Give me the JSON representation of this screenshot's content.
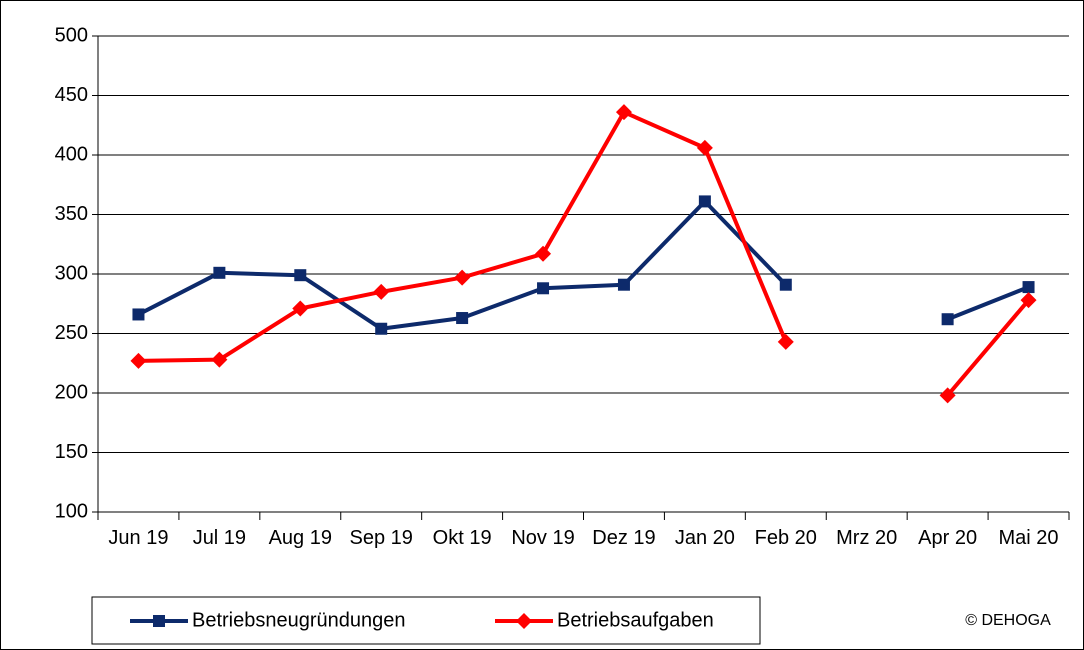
{
  "chart_data": {
    "type": "line",
    "categories": [
      "Jun 19",
      "Jul 19",
      "Aug 19",
      "Sep 19",
      "Okt 19",
      "Nov 19",
      "Dez 19",
      "Jan 20",
      "Feb 20",
      "Mrz 20",
      "Apr 20",
      "Mai 20"
    ],
    "series": [
      {
        "name": "Betriebsneugründungen",
        "color": "#0d2a6b",
        "marker": "square",
        "values": [
          266,
          301,
          299,
          254,
          263,
          288,
          291,
          361,
          291,
          null,
          262,
          289
        ]
      },
      {
        "name": "Betriebsaufgaben",
        "color": "#ff0000",
        "marker": "diamond",
        "values": [
          227,
          228,
          271,
          285,
          297,
          317,
          436,
          406,
          243,
          null,
          198,
          278
        ]
      }
    ],
    "ylim": [
      100,
      500
    ],
    "yticks": [
      100,
      150,
      200,
      250,
      300,
      350,
      400,
      450,
      500
    ],
    "grid": true,
    "legend": "bottom",
    "annotation": "© DEHOGA"
  }
}
